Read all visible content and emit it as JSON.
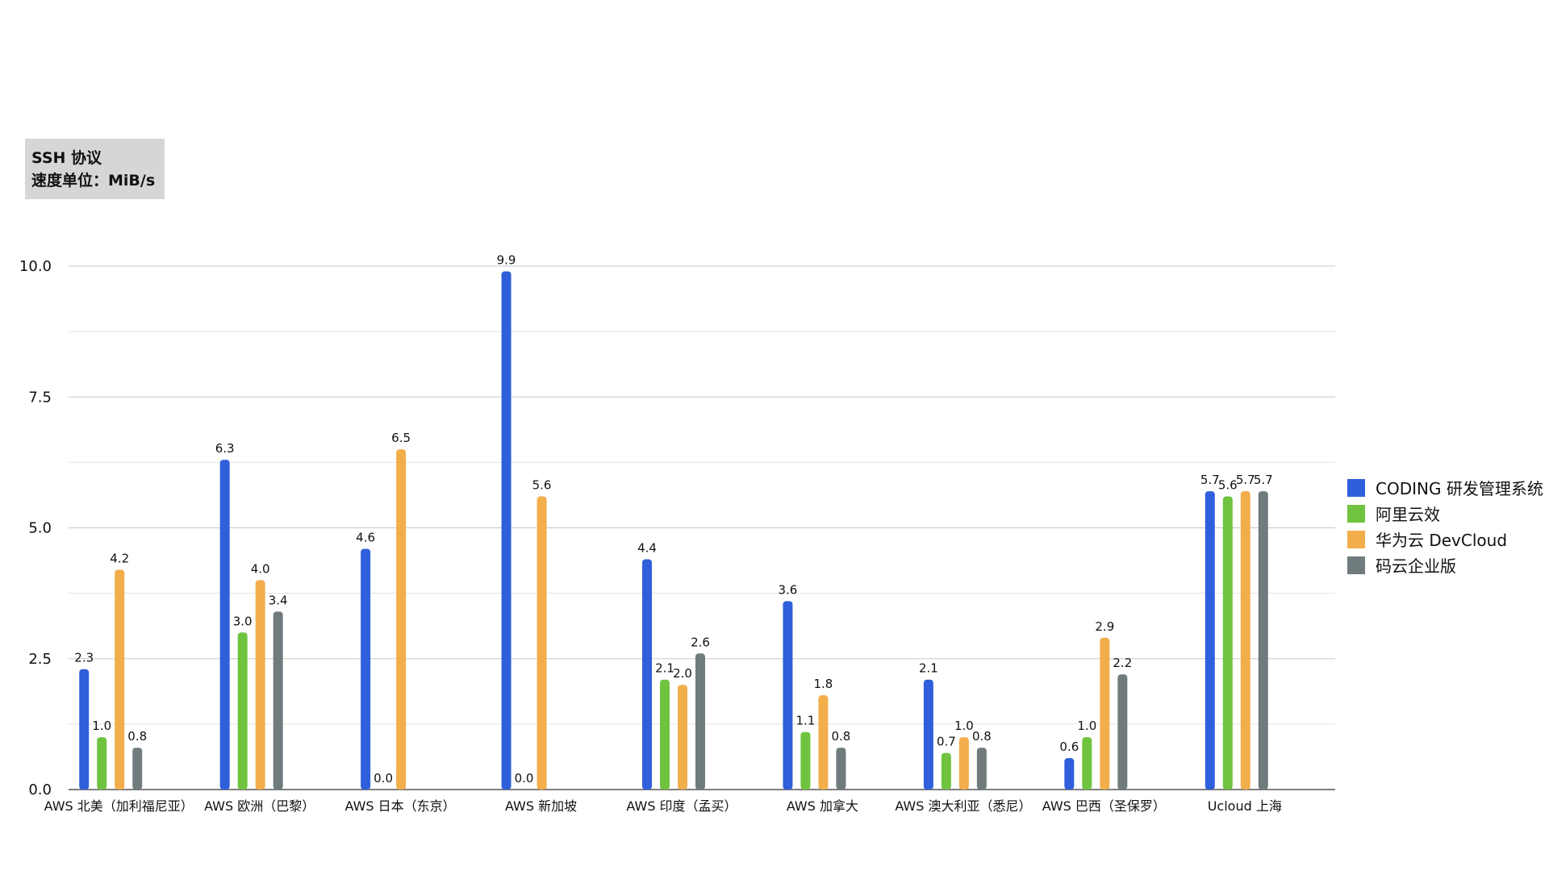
{
  "note": {
    "line1": "SSH 协议",
    "line2": "速度单位：MiB/s"
  },
  "chart_data": {
    "type": "bar",
    "title": "",
    "xlabel": "",
    "ylabel": "",
    "ylim": [
      0,
      10
    ],
    "yticks": [
      "0.0",
      "2.5",
      "5.0",
      "7.5",
      "10.0"
    ],
    "grid": true,
    "legend_position": "right",
    "categories": [
      "AWS 北美（加利福尼亚）",
      "AWS 欧洲（巴黎）",
      "AWS 日本（东京）",
      "AWS 新加坡",
      "AWS 印度（孟买）",
      "AWS 加拿大",
      "AWS 澳大利亚（悉尼）",
      "AWS 巴西（圣保罗）",
      "Ucloud 上海"
    ],
    "series": [
      {
        "name": "CODING 研发管理系统",
        "color": "#2f5fdb",
        "values": [
          2.3,
          6.3,
          4.6,
          9.9,
          4.4,
          3.6,
          2.1,
          0.6,
          5.7
        ],
        "labels": [
          "2.3",
          "6.3",
          "4.6",
          "9.9",
          "4.4",
          "3.6",
          "2.1",
          "0.6",
          "5.7"
        ]
      },
      {
        "name": "阿里云效",
        "color": "#6fc33f",
        "values": [
          1.0,
          3.0,
          0.0,
          0.0,
          2.1,
          1.1,
          0.7,
          1.0,
          5.6
        ],
        "labels": [
          "1.0",
          "3.0",
          "0.0",
          "0.0",
          "2.1",
          "1.1",
          "0.7",
          "1.0",
          "5.6"
        ]
      },
      {
        "name": "华为云 DevCloud",
        "color": "#f2ae4b",
        "values": [
          4.2,
          4.0,
          6.5,
          5.6,
          2.0,
          1.8,
          1.0,
          2.9,
          5.7
        ],
        "labels": [
          "4.2",
          "4.0",
          "6.5",
          "5.6",
          "2.0",
          "1.8",
          "1.0",
          "2.9",
          "5.7"
        ]
      },
      {
        "name": "码云企业版",
        "color": "#6f7b7d",
        "values": [
          0.8,
          3.4,
          null,
          null,
          2.6,
          0.8,
          0.8,
          2.2,
          5.7
        ],
        "labels": [
          "0.8",
          "3.4",
          "",
          "",
          "2.6",
          "0.8",
          "0.8",
          "2.2",
          "5.7"
        ]
      }
    ]
  }
}
